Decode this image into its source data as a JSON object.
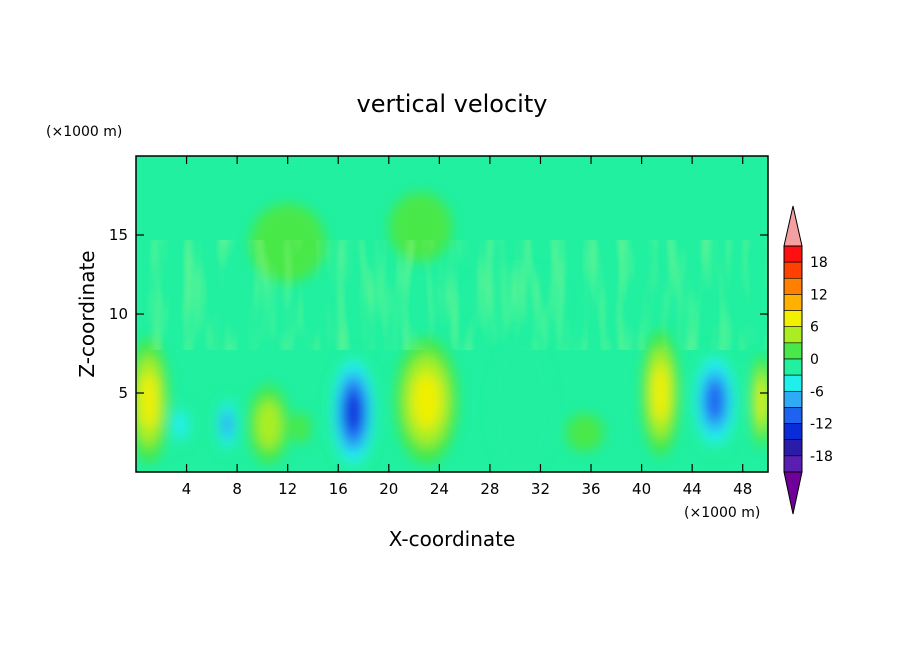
{
  "chart_data": {
    "type": "heatmap",
    "title": "vertical velocity",
    "xlabel": "X-coordinate",
    "ylabel": "Z-coordinate",
    "x_unit": "(×1000 m)",
    "y_unit": "(×1000 m)",
    "xlim": [
      0,
      50
    ],
    "ylim": [
      0,
      20
    ],
    "x_ticks": [
      "4",
      "8",
      "12",
      "16",
      "20",
      "24",
      "28",
      "32",
      "36",
      "40",
      "44",
      "48"
    ],
    "y_ticks": [
      "5",
      "10",
      "15"
    ],
    "colorbar": {
      "levels": [
        -21,
        -18,
        -15,
        -12,
        -9,
        -6,
        -3,
        0,
        3,
        6,
        9,
        12,
        15,
        18,
        21
      ],
      "labels": [
        "18",
        "12",
        "6",
        "0",
        "-6",
        "-12",
        "-18"
      ],
      "colors": [
        "#70009a",
        "#5a1fb0",
        "#2a1ca8",
        "#0a2cd8",
        "#1e62f0",
        "#2faaf5",
        "#20f0ec",
        "#20f0a0",
        "#48e84a",
        "#aaee22",
        "#f0f000",
        "#ffb000",
        "#ff8000",
        "#ff4000",
        "#ff1010",
        "#f4a0a0"
      ]
    },
    "cells": [
      {
        "x": 1,
        "z": 4.5,
        "rx": 1.6,
        "rz": 4.0,
        "value": 10
      },
      {
        "x": 3.5,
        "z": 3.0,
        "rx": 1.0,
        "rz": 1.5,
        "value": -6
      },
      {
        "x": 7.2,
        "z": 3.0,
        "rx": 1.0,
        "rz": 2.0,
        "value": -9
      },
      {
        "x": 10.5,
        "z": 3.0,
        "rx": 1.6,
        "rz": 2.5,
        "value": 6
      },
      {
        "x": 13,
        "z": 2.8,
        "rx": 0.8,
        "rz": 1.0,
        "value": 4
      },
      {
        "x": 17.2,
        "z": 3.8,
        "rx": 2.0,
        "rz": 4.0,
        "value": -15
      },
      {
        "x": 23,
        "z": 4.5,
        "rx": 2.5,
        "rz": 4.0,
        "value": 10
      },
      {
        "x": 30.5,
        "z": 4.0,
        "rx": 2.5,
        "rz": 4.5,
        "value": -4
      },
      {
        "x": 35.5,
        "z": 2.5,
        "rx": 1.5,
        "rz": 1.2,
        "value": 3
      },
      {
        "x": 41.5,
        "z": 5.0,
        "rx": 1.5,
        "rz": 4.0,
        "value": 9
      },
      {
        "x": 45.8,
        "z": 4.5,
        "rx": 2.0,
        "rz": 3.5,
        "value": -12
      },
      {
        "x": 49.5,
        "z": 4.5,
        "rx": 0.8,
        "rz": 3.0,
        "value": 8
      },
      {
        "x": 22.5,
        "z": 15.5,
        "rx": 2.5,
        "rz": 2.2,
        "value": 2
      },
      {
        "x": 12,
        "z": 14.5,
        "rx": 3.0,
        "rz": 2.5,
        "value": 1
      },
      {
        "x": 30,
        "z": 11,
        "rx": 4.0,
        "rz": 2.0,
        "value": -1
      }
    ]
  }
}
